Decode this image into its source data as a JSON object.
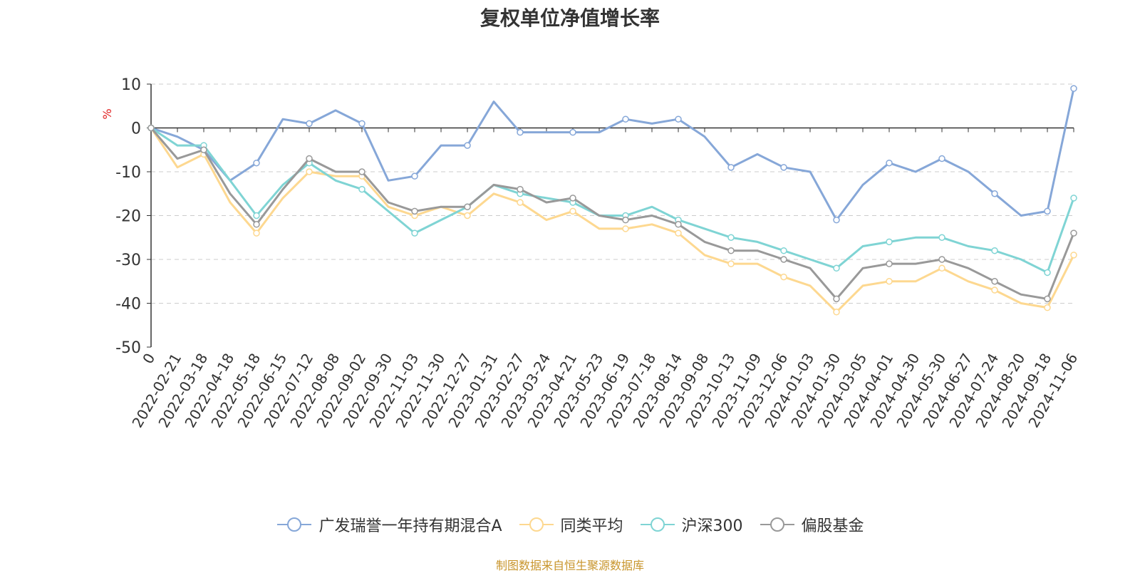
{
  "chart_data": {
    "type": "line",
    "title": "复权单位净值增长率",
    "ylabel": "%",
    "ylim": [
      -50,
      10
    ],
    "yticks": [
      10,
      0,
      -10,
      -20,
      -30,
      -40,
      -50
    ],
    "categories": [
      "0",
      "2022-02-21",
      "2022-03-18",
      "2022-04-18",
      "2022-05-18",
      "2022-06-15",
      "2022-07-12",
      "2022-08-08",
      "2022-09-02",
      "2022-09-30",
      "2022-11-03",
      "2022-11-30",
      "2022-12-27",
      "2023-01-31",
      "2023-02-27",
      "2023-03-24",
      "2023-04-21",
      "2023-05-23",
      "2023-06-19",
      "2023-07-18",
      "2023-08-14",
      "2023-09-08",
      "2023-10-13",
      "2023-11-09",
      "2023-12-06",
      "2024-01-03",
      "2024-01-30",
      "2024-03-05",
      "2024-04-01",
      "2024-04-30",
      "2024-05-30",
      "2024-06-27",
      "2024-07-24",
      "2024-08-20",
      "2024-09-18",
      "2024-11-06"
    ],
    "legend_position": "bottom",
    "grid": "horizontal-dashed",
    "series": [
      {
        "name": "广发瑞誉一年持有期混合A",
        "color": "#86a7d8",
        "values": [
          0,
          -2,
          -5,
          -12,
          -8,
          2,
          1,
          4,
          1,
          -12,
          -11,
          -4,
          -4,
          6,
          -1,
          -1,
          -1,
          -1,
          2,
          1,
          2,
          -2,
          -9,
          -6,
          -9,
          -10,
          -21,
          -13,
          -8,
          -10,
          -7,
          -10,
          -15,
          -20,
          -19,
          9
        ]
      },
      {
        "name": "同类平均",
        "color": "#fdd890",
        "values": [
          0,
          -9,
          -6,
          -17,
          -24,
          -16,
          -10,
          -11,
          -11,
          -18,
          -20,
          -18,
          -20,
          -15,
          -17,
          -21,
          -19,
          -23,
          -23,
          -22,
          -24,
          -29,
          -31,
          -31,
          -34,
          -36,
          -42,
          -36,
          -35,
          -35,
          -32,
          -35,
          -37,
          -40,
          -41,
          -29
        ]
      },
      {
        "name": "沪深300",
        "color": "#7fd4d4",
        "values": [
          0,
          -4,
          -4,
          -12,
          -20,
          -13,
          -8,
          -12,
          -14,
          -19,
          -24,
          -21,
          -18,
          -13,
          -15,
          -16,
          -17,
          -20,
          -20,
          -18,
          -21,
          -23,
          -25,
          -26,
          -28,
          -30,
          -32,
          -27,
          -26,
          -25,
          -25,
          -27,
          -28,
          -30,
          -33,
          -16
        ]
      },
      {
        "name": "偏股基金",
        "color": "#999999",
        "values": [
          0,
          -7,
          -5,
          -15,
          -22,
          -14,
          -7,
          -10,
          -10,
          -17,
          -19,
          -18,
          -18,
          -13,
          -14,
          -17,
          -16,
          -20,
          -21,
          -20,
          -22,
          -26,
          -28,
          -28,
          -30,
          -32,
          -39,
          -32,
          -31,
          -31,
          -30,
          -32,
          -35,
          -38,
          -39,
          -24
        ]
      }
    ]
  },
  "source_text": "制图数据来自恒生聚源数据库"
}
